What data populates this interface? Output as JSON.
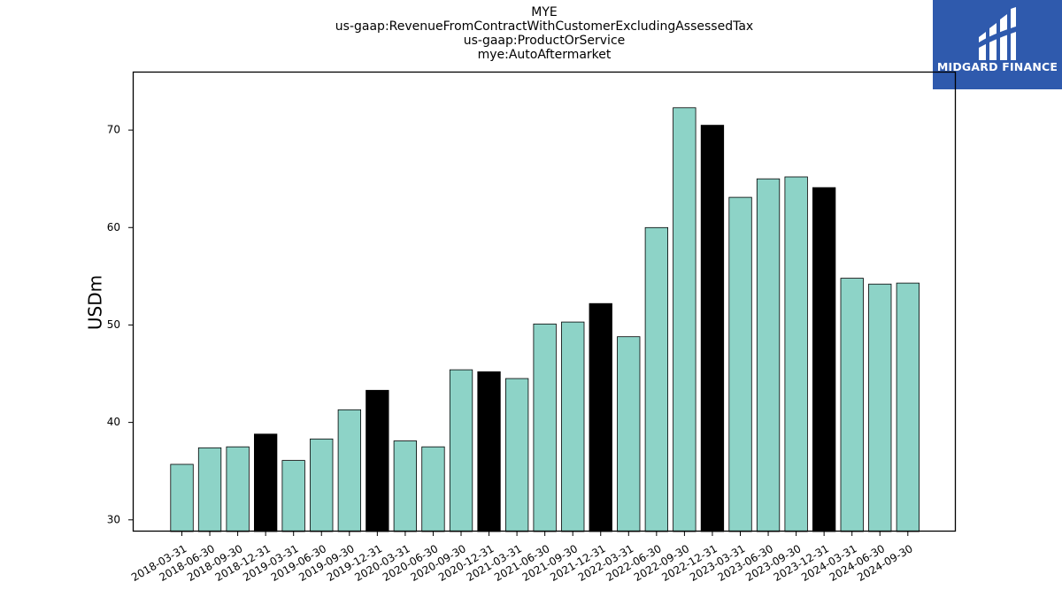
{
  "title_lines": [
    "MYE",
    "us-gaap:RevenueFromContractWithCustomerExcludingAssessedTax",
    "us-gaap:ProductOrService",
    "mye:AutoAftermarket"
  ],
  "logo": {
    "text": "MIDGARD FINANCE",
    "background": "#2f5aad"
  },
  "colors": {
    "default_bar": "#8dd3c7",
    "q4_bar": "#000000",
    "edge": "#000000"
  },
  "chart_data": {
    "type": "bar",
    "ylabel": "USDm",
    "xlabel": "",
    "ylim": [
      28.8,
      76
    ],
    "yticks": [
      30,
      40,
      50,
      60,
      70
    ],
    "grid": false,
    "legend": "none",
    "categories": [
      "2018-03-31",
      "2018-06-30",
      "2018-09-30",
      "2018-12-31",
      "2019-03-31",
      "2019-06-30",
      "2019-09-30",
      "2019-12-31",
      "2020-03-31",
      "2020-06-30",
      "2020-09-30",
      "2020-12-31",
      "2021-03-31",
      "2021-06-30",
      "2021-09-30",
      "2021-12-31",
      "2022-03-31",
      "2022-06-30",
      "2022-09-30",
      "2022-12-31",
      "2023-03-31",
      "2023-06-30",
      "2023-09-30",
      "2023-12-31",
      "2024-03-31",
      "2024-06-30",
      "2024-09-30"
    ],
    "values": [
      35.7,
      37.4,
      37.5,
      38.8,
      36.1,
      38.3,
      41.3,
      43.3,
      38.1,
      37.5,
      45.4,
      45.2,
      44.5,
      50.1,
      50.3,
      52.2,
      48.8,
      60.0,
      72.3,
      70.5,
      63.1,
      65.0,
      65.2,
      64.1,
      54.8,
      54.2,
      54.3
    ],
    "highlight_year_end": true
  }
}
